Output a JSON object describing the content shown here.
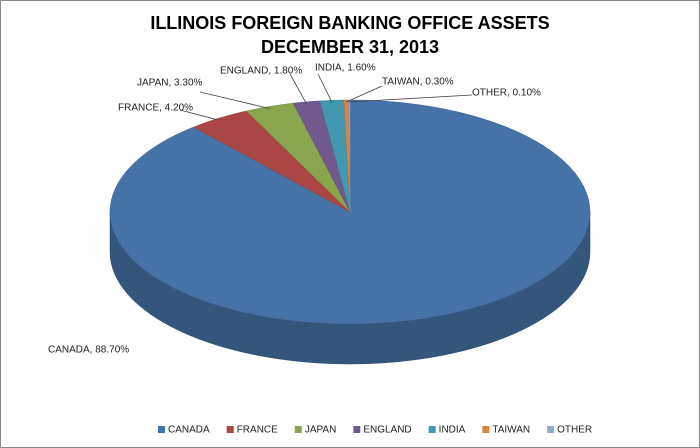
{
  "chart_data": {
    "type": "pie3d",
    "title": [
      "ILLINOIS FOREIGN BANKING OFFICE ASSETS",
      "DECEMBER 31, 2013"
    ],
    "categories": [
      "CANADA",
      "FRANCE",
      "JAPAN",
      "ENGLAND",
      "INDIA",
      "TAIWAN",
      "OTHER"
    ],
    "values": [
      88.7,
      4.2,
      3.3,
      1.8,
      1.6,
      0.3,
      0.1
    ],
    "value_labels": [
      "CANADA, 88.70%",
      "FRANCE, 4.20%",
      "JAPAN, 3.30%",
      "ENGLAND, 1.80%",
      "INDIA, 1.60%",
      "TAIWAN, 0.30%",
      "OTHER, 0.10%"
    ],
    "colors": [
      "#4572a7",
      "#aa4643",
      "#89a54e",
      "#71588f",
      "#4198af",
      "#db843d",
      "#93a9cf"
    ],
    "legend": "bottom"
  }
}
